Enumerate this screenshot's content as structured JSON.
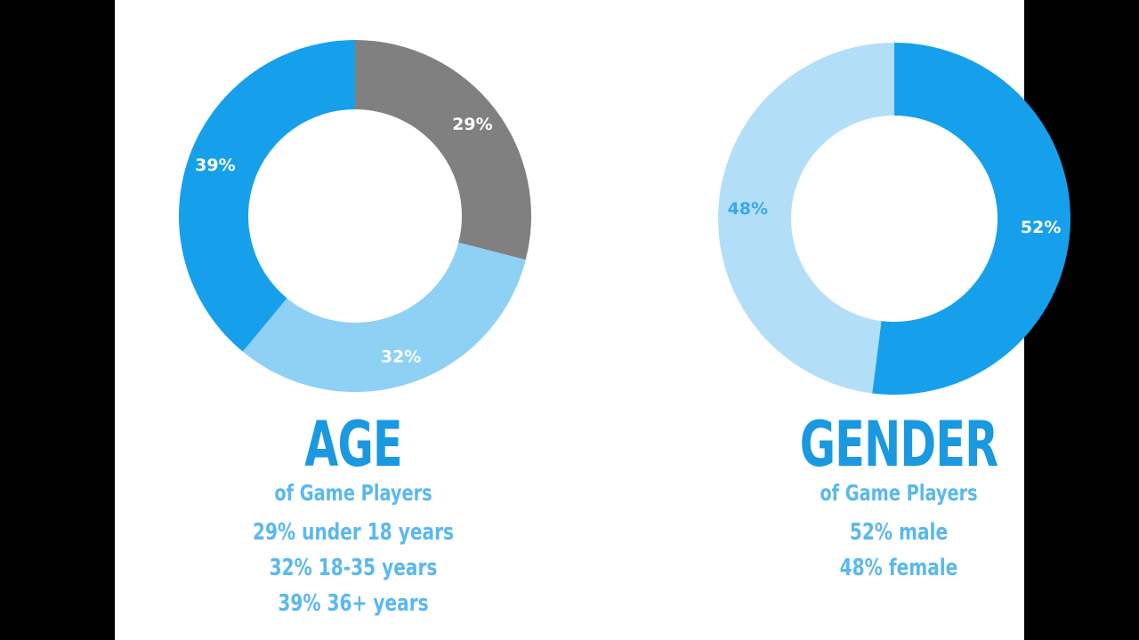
{
  "colors": {
    "dark_blue": "#16a0ec",
    "light_blue": "#8fd0f5",
    "gray": "#808080",
    "pale_blue": "#b3def8"
  },
  "chart_data": [
    {
      "type": "pie",
      "title": "AGE",
      "subtitle": "of Game Players",
      "slices": [
        {
          "label": "29%",
          "value": 29,
          "color": "#808080"
        },
        {
          "label": "32%",
          "value": 32,
          "color": "#8fd0f5"
        },
        {
          "label": "39%",
          "value": 39,
          "color": "#16a0ec"
        }
      ],
      "legend": [
        "29% under 18 years",
        "32% 18-35 years",
        "39% 36+ years"
      ]
    },
    {
      "type": "pie",
      "title": "GENDER",
      "subtitle": "of Game Players",
      "slices": [
        {
          "label": "52%",
          "value": 52,
          "color": "#16a0ec"
        },
        {
          "label": "48%",
          "value": 48,
          "color": "#b3def8"
        }
      ],
      "legend": [
        "52% male",
        "48% female"
      ]
    }
  ]
}
